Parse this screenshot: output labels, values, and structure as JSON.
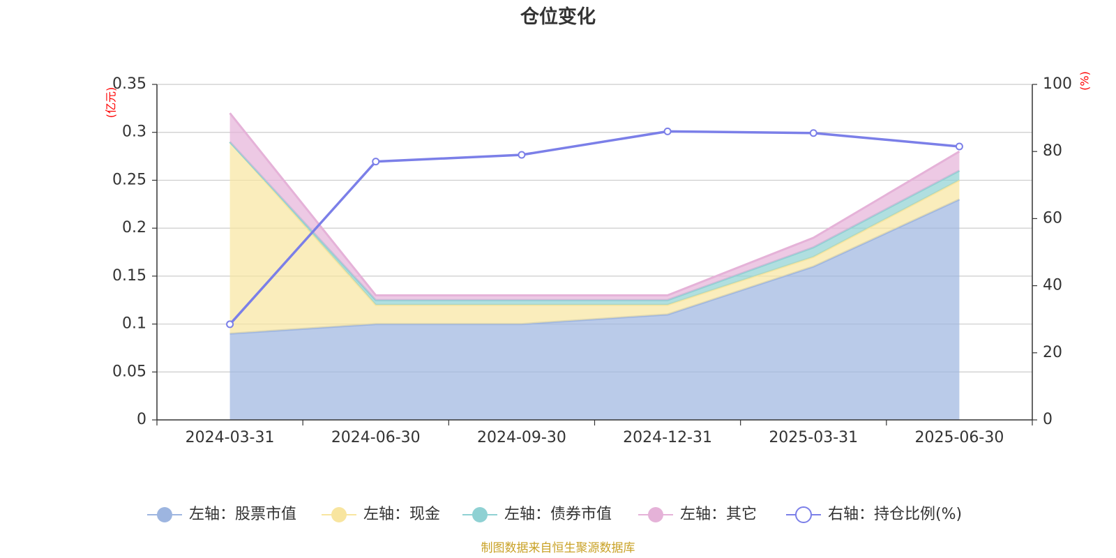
{
  "chart_data": {
    "type": "area",
    "title": "仓位变化",
    "categories": [
      "2024-03-31",
      "2024-06-30",
      "2024-09-30",
      "2024-12-31",
      "2025-03-31",
      "2025-06-30"
    ],
    "left_axis": {
      "unit": "(亿元)",
      "ylim": [
        0,
        0.35
      ],
      "ticks": [
        "0",
        "0.05",
        "0.1",
        "0.15",
        "0.2",
        "0.25",
        "0.3",
        "0.35"
      ]
    },
    "right_axis": {
      "unit": "(%)",
      "ylim": [
        0,
        100
      ],
      "ticks": [
        "0",
        "20",
        "40",
        "60",
        "80",
        "100"
      ]
    },
    "stacked": true,
    "series": [
      {
        "name": "左轴：股票市值",
        "axis": "left",
        "type": "area",
        "color": "#9db5e0",
        "values": [
          0.09,
          0.1,
          0.1,
          0.11,
          0.16,
          0.23
        ]
      },
      {
        "name": "左轴：现金",
        "axis": "left",
        "type": "area",
        "color": "#f8e59f",
        "values": [
          0.2,
          0.02,
          0.02,
          0.01,
          0.01,
          0.02
        ]
      },
      {
        "name": "左轴：债券市值",
        "axis": "left",
        "type": "area",
        "color": "#8fd1d3",
        "values": [
          0.0,
          0.005,
          0.005,
          0.005,
          0.01,
          0.01
        ]
      },
      {
        "name": "左轴：其它",
        "axis": "left",
        "type": "area",
        "color": "#e5b2d8",
        "values": [
          0.03,
          0.005,
          0.005,
          0.005,
          0.01,
          0.02
        ]
      },
      {
        "name": "右轴：持仓比例(%)",
        "axis": "right",
        "type": "line",
        "color": "#7b7fe8",
        "values": [
          28.5,
          77,
          79,
          86,
          85.5,
          81.5
        ]
      }
    ],
    "grid": true,
    "legend_position": "bottom",
    "source_note": "制图数据来自恒生聚源数据库"
  }
}
